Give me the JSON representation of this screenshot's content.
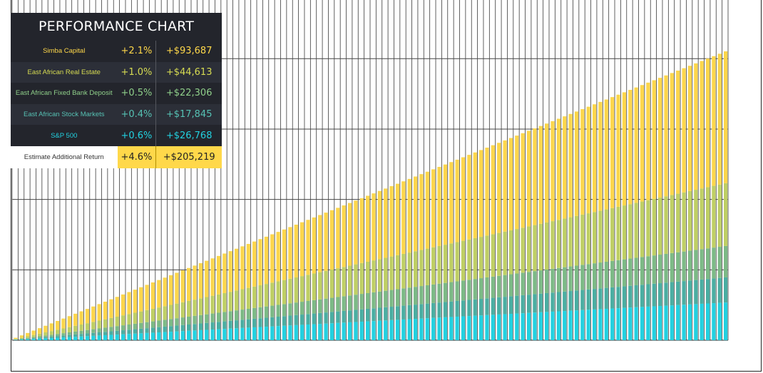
{
  "panel": {
    "title": "PERFORMANCE CHART",
    "rows": [
      {
        "name": "Simba Capital",
        "pct": "+2.1%",
        "value": "+$93,687",
        "color": "#ffd84a"
      },
      {
        "name": "East African Real Estate",
        "pct": "+1.0%",
        "value": "+$44,613",
        "color": "#d7dc52"
      },
      {
        "name": "East African Fixed Bank Deposit",
        "pct": "+0.5%",
        "value": "+$22,306",
        "color": "#8fcf8a"
      },
      {
        "name": "East African Stock Markets",
        "pct": "+0.4%",
        "value": "+$17,845",
        "color": "#56c2b4"
      },
      {
        "name": "S&P 500",
        "pct": "+0.6%",
        "value": "+$26,768",
        "color": "#22d1e0"
      }
    ],
    "total": {
      "label": "Estimate Additional Return",
      "pct": "+4.6%",
      "value": "+$205,219"
    }
  },
  "chart_data": {
    "type": "bar",
    "stacked": true,
    "bar_count": 120,
    "x": [
      1,
      2,
      3,
      4,
      5,
      6,
      7,
      8,
      9,
      10,
      11,
      12,
      13,
      14,
      15,
      16,
      17,
      18,
      19,
      20,
      21,
      22,
      23,
      24,
      25,
      26,
      27,
      28,
      29,
      30,
      31,
      32,
      33,
      34,
      35,
      36,
      37,
      38,
      39,
      40,
      41,
      42,
      43,
      44,
      45,
      46,
      47,
      48,
      49,
      50,
      51,
      52,
      53,
      54,
      55,
      56,
      57,
      58,
      59,
      60,
      61,
      62,
      63,
      64,
      65,
      66,
      67,
      68,
      69,
      70,
      71,
      72,
      73,
      74,
      75,
      76,
      77,
      78,
      79,
      80,
      81,
      82,
      83,
      84,
      85,
      86,
      87,
      88,
      89,
      90,
      91,
      92,
      93,
      94,
      95,
      96,
      97,
      98,
      99,
      100,
      101,
      102,
      103,
      104,
      105,
      106,
      107,
      108,
      109,
      110,
      111,
      112,
      113,
      114,
      115,
      116,
      117,
      118,
      119,
      120
    ],
    "series": [
      {
        "color": "#22d1e0",
        "final": 26768
      },
      {
        "color": "#4aaea2",
        "final": 17845
      },
      {
        "color": "#7cba86",
        "final": 22306
      },
      {
        "color": "#bfcf64",
        "final": 44613
      },
      {
        "color": "#fdd64b",
        "final": 93687
      }
    ],
    "series_order": "bottom-to-top",
    "ylim": [
      0,
      250000
    ],
    "gridlines_y": [
      50000,
      100000,
      150000,
      200000
    ],
    "grid": true,
    "legend": "none"
  }
}
